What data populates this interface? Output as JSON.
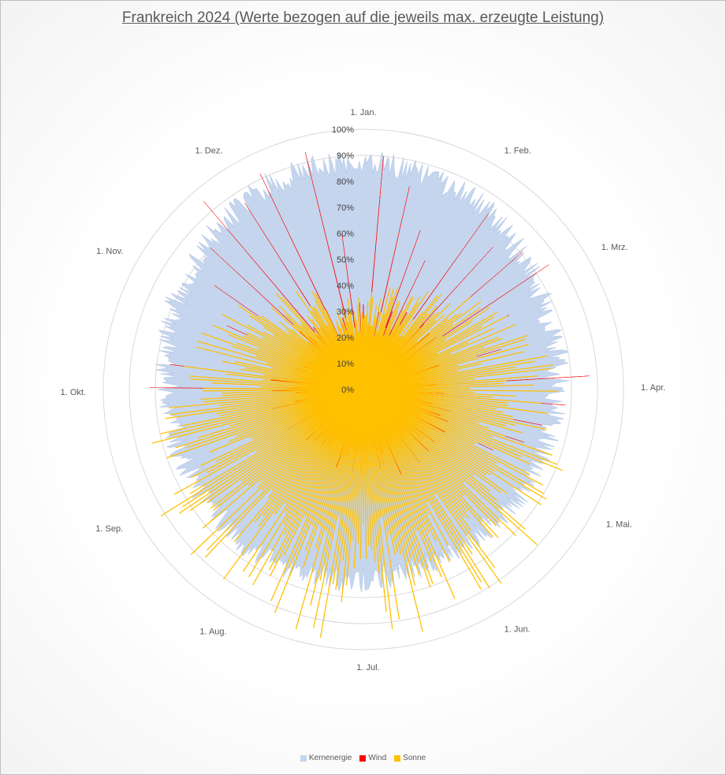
{
  "chart_data": {
    "type": "radar",
    "title": "Frankreich 2024 (Werte bezogen auf die jeweils max. erzeugte Leistung)",
    "categories": [
      "1. Jan.",
      "1. Feb.",
      "1. Mrz.",
      "1. Apr.",
      "1. Mai.",
      "1. Jun.",
      "1. Jul.",
      "1. Aug.",
      "1. Sep.",
      "1. Okt.",
      "1. Nov.",
      "1. Dez."
    ],
    "radial_ticks": [
      "0%",
      "10%",
      "20%",
      "30%",
      "40%",
      "50%",
      "60%",
      "70%",
      "80%",
      "90%",
      "100%"
    ],
    "rlim": [
      0,
      100
    ],
    "grid": true,
    "legend_position": "bottom",
    "series": [
      {
        "name": "Kernenergie",
        "color": "#c5d5ee",
        "monthly_typical": [
          88,
          84,
          77,
          74,
          72,
          70,
          73,
          75,
          73,
          75,
          80,
          86
        ]
      },
      {
        "name": "Wind",
        "color": "#ff0000",
        "peaks": [
          {
            "day": 5,
            "value": 90
          },
          {
            "day": 13,
            "value": 80
          },
          {
            "day": 20,
            "value": 65
          },
          {
            "day": 26,
            "value": 55
          },
          {
            "day": 36,
            "value": 83
          },
          {
            "day": 43,
            "value": 74
          },
          {
            "day": 50,
            "value": 81
          },
          {
            "day": 57,
            "value": 86
          },
          {
            "day": 64,
            "value": 63
          },
          {
            "day": 75,
            "value": 55
          },
          {
            "day": 88,
            "value": 87
          },
          {
            "day": 96,
            "value": 78
          },
          {
            "day": 103,
            "value": 70
          },
          {
            "day": 110,
            "value": 65
          },
          {
            "day": 117,
            "value": 55
          },
          {
            "day": 125,
            "value": 50
          },
          {
            "day": 150,
            "value": 45
          },
          {
            "day": 170,
            "value": 40
          },
          {
            "day": 192,
            "value": 42
          },
          {
            "day": 215,
            "value": 38
          },
          {
            "day": 238,
            "value": 35
          },
          {
            "day": 260,
            "value": 40
          },
          {
            "day": 275,
            "value": 82
          },
          {
            "day": 282,
            "value": 75
          },
          {
            "day": 291,
            "value": 60
          },
          {
            "day": 300,
            "value": 58
          },
          {
            "day": 310,
            "value": 70
          },
          {
            "day": 318,
            "value": 80
          },
          {
            "day": 325,
            "value": 95
          },
          {
            "day": 333,
            "value": 85
          },
          {
            "day": 340,
            "value": 92
          },
          {
            "day": 352,
            "value": 94
          },
          {
            "day": 358,
            "value": 60
          }
        ]
      },
      {
        "name": "Sonne",
        "color": "#ffc000",
        "monthly_typical": [
          35,
          40,
          55,
          72,
          78,
          88,
          90,
          88,
          85,
          72,
          55,
          40
        ]
      }
    ]
  }
}
